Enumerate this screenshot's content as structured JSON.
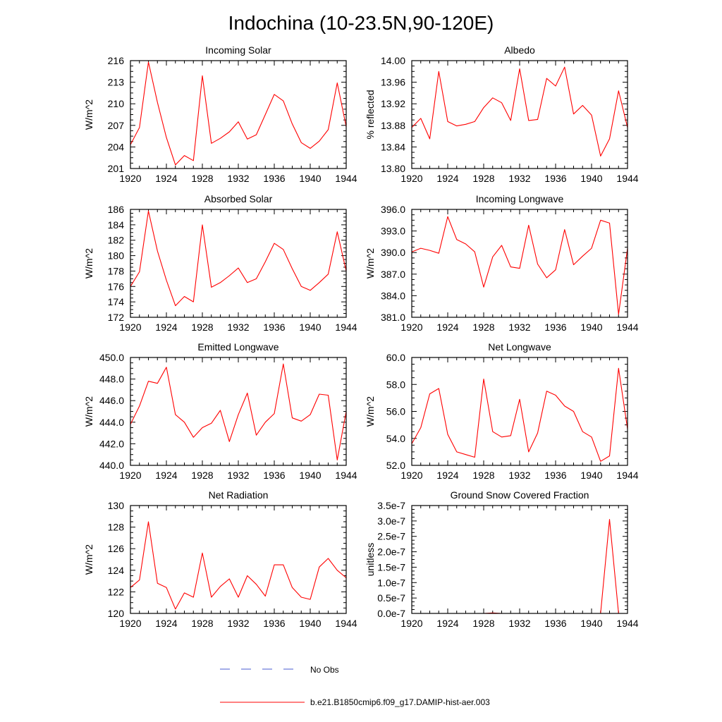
{
  "figure": {
    "title": "Indochina (10-23.5N,90-120E)",
    "legend": [
      {
        "label": "No Obs",
        "style": "dashed",
        "color": "#4a5bd0"
      },
      {
        "label": "b.e21.B1850cmip6.f09_g17.DAMIP-hist-aer.003",
        "style": "solid",
        "color": "#ff0000"
      }
    ]
  },
  "chart_data": [
    {
      "type": "line",
      "title": "Incoming Solar",
      "ylabel": "W/m^2",
      "xlim": [
        1920,
        1944
      ],
      "ylim": [
        201,
        216
      ],
      "yticks": [
        "201",
        "204",
        "207",
        "210",
        "213",
        "216"
      ],
      "xticks": [
        "1920",
        "1924",
        "1928",
        "1932",
        "1936",
        "1940",
        "1944"
      ],
      "series": [
        {
          "color": "#ff0000",
          "x": [
            1920,
            1921,
            1922,
            1923,
            1924,
            1925,
            1926,
            1927,
            1928,
            1929,
            1930,
            1931,
            1932,
            1933,
            1934,
            1935,
            1936,
            1937,
            1938,
            1939,
            1940,
            1941,
            1942,
            1943,
            1944
          ],
          "values": [
            204.3,
            206.7,
            215.8,
            210.2,
            205.3,
            201.5,
            202.8,
            202.1,
            213.9,
            204.5,
            205.2,
            206.1,
            207.5,
            205.1,
            205.7,
            208.5,
            211.3,
            210.4,
            207.2,
            204.6,
            203.8,
            204.8,
            206.4,
            212.9,
            206.8
          ]
        }
      ]
    },
    {
      "type": "line",
      "title": "Albedo",
      "ylabel": "% reflected",
      "xlim": [
        1920,
        1944
      ],
      "ylim": [
        13.8,
        14.0
      ],
      "yticks": [
        "13.80",
        "13.84",
        "13.88",
        "13.92",
        "13.96",
        "14.00"
      ],
      "xticks": [
        "1920",
        "1924",
        "1928",
        "1932",
        "1936",
        "1940",
        "1944"
      ],
      "series": [
        {
          "color": "#ff0000",
          "x": [
            1920,
            1921,
            1922,
            1923,
            1924,
            1925,
            1926,
            1927,
            1928,
            1929,
            1930,
            1931,
            1932,
            1933,
            1934,
            1935,
            1936,
            1937,
            1938,
            1939,
            1940,
            1941,
            1942,
            1943,
            1944
          ],
          "values": [
            13.876,
            13.893,
            13.855,
            13.98,
            13.887,
            13.879,
            13.882,
            13.887,
            13.913,
            13.931,
            13.922,
            13.889,
            13.985,
            13.889,
            13.891,
            13.967,
            13.953,
            13.988,
            13.901,
            13.917,
            13.899,
            13.823,
            13.855,
            13.944,
            13.876
          ]
        }
      ]
    },
    {
      "type": "line",
      "title": "Absorbed Solar",
      "ylabel": "W/m^2",
      "xlim": [
        1920,
        1944
      ],
      "ylim": [
        172,
        186
      ],
      "yticks": [
        "172",
        "174",
        "176",
        "178",
        "180",
        "182",
        "184",
        "186"
      ],
      "xticks": [
        "1920",
        "1924",
        "1928",
        "1932",
        "1936",
        "1940",
        "1944"
      ],
      "series": [
        {
          "color": "#ff0000",
          "x": [
            1920,
            1921,
            1922,
            1923,
            1924,
            1925,
            1926,
            1927,
            1928,
            1929,
            1930,
            1931,
            1932,
            1933,
            1934,
            1935,
            1936,
            1937,
            1938,
            1939,
            1940,
            1941,
            1942,
            1943,
            1944
          ],
          "values": [
            176.0,
            177.9,
            185.8,
            180.6,
            176.8,
            173.5,
            174.7,
            174.0,
            184.0,
            175.9,
            176.5,
            177.4,
            178.4,
            176.5,
            177.0,
            179.2,
            181.6,
            180.8,
            178.3,
            176.0,
            175.5,
            176.5,
            177.6,
            183.1,
            178.0
          ]
        }
      ]
    },
    {
      "type": "line",
      "title": "Incoming Longwave",
      "ylabel": "W/m^2",
      "xlim": [
        1920,
        1944
      ],
      "ylim": [
        381.0,
        396.0
      ],
      "yticks": [
        "381.0",
        "384.0",
        "387.0",
        "390.0",
        "393.0",
        "396.0"
      ],
      "xticks": [
        "1920",
        "1924",
        "1928",
        "1932",
        "1936",
        "1940",
        "1944"
      ],
      "series": [
        {
          "color": "#ff0000",
          "x": [
            1920,
            1921,
            1922,
            1923,
            1924,
            1925,
            1926,
            1927,
            1928,
            1929,
            1930,
            1931,
            1932,
            1933,
            1934,
            1935,
            1936,
            1937,
            1938,
            1939,
            1940,
            1941,
            1942,
            1943,
            1944
          ],
          "values": [
            390.1,
            390.6,
            390.3,
            389.9,
            395.0,
            391.8,
            391.2,
            390.1,
            385.2,
            389.4,
            391.0,
            388.0,
            387.8,
            393.8,
            388.4,
            386.5,
            387.6,
            393.2,
            388.3,
            389.5,
            390.6,
            394.5,
            394.1,
            381.4,
            390.6
          ]
        }
      ]
    },
    {
      "type": "line",
      "title": "Emitted Longwave",
      "ylabel": "W/m^2",
      "xlim": [
        1920,
        1944
      ],
      "ylim": [
        440.0,
        450.0
      ],
      "yticks": [
        "440.0",
        "442.0",
        "444.0",
        "446.0",
        "448.0",
        "450.0"
      ],
      "xticks": [
        "1920",
        "1924",
        "1928",
        "1932",
        "1936",
        "1940",
        "1944"
      ],
      "series": [
        {
          "color": "#ff0000",
          "x": [
            1920,
            1921,
            1922,
            1923,
            1924,
            1925,
            1926,
            1927,
            1928,
            1929,
            1930,
            1931,
            1932,
            1933,
            1934,
            1935,
            1936,
            1937,
            1938,
            1939,
            1940,
            1941,
            1942,
            1943,
            1944
          ],
          "values": [
            443.8,
            445.5,
            447.8,
            447.6,
            449.1,
            444.7,
            444.0,
            442.6,
            443.5,
            443.9,
            445.1,
            442.2,
            444.7,
            446.7,
            442.8,
            444.0,
            444.8,
            449.4,
            444.4,
            444.1,
            444.7,
            446.6,
            446.5,
            440.5,
            445.0
          ]
        }
      ]
    },
    {
      "type": "line",
      "title": "Net Longwave",
      "ylabel": "W/m^2",
      "xlim": [
        1920,
        1944
      ],
      "ylim": [
        52.0,
        60.0
      ],
      "yticks": [
        "52.0",
        "54.0",
        "56.0",
        "58.0",
        "60.0"
      ],
      "xticks": [
        "1920",
        "1924",
        "1928",
        "1932",
        "1936",
        "1940",
        "1944"
      ],
      "series": [
        {
          "color": "#ff0000",
          "x": [
            1920,
            1921,
            1922,
            1923,
            1924,
            1925,
            1926,
            1927,
            1928,
            1929,
            1930,
            1931,
            1932,
            1933,
            1934,
            1935,
            1936,
            1937,
            1938,
            1939,
            1940,
            1941,
            1942,
            1943,
            1944
          ],
          "values": [
            53.6,
            54.8,
            57.3,
            57.7,
            54.3,
            53.0,
            52.8,
            52.6,
            58.4,
            54.5,
            54.1,
            54.2,
            56.9,
            53.0,
            54.4,
            57.5,
            57.2,
            56.4,
            56.0,
            54.5,
            54.1,
            52.3,
            52.7,
            59.2,
            54.7
          ]
        }
      ]
    },
    {
      "type": "line",
      "title": "Net Radiation",
      "ylabel": "W/m^2",
      "xlim": [
        1920,
        1944
      ],
      "ylim": [
        120,
        130
      ],
      "yticks": [
        "120",
        "122",
        "124",
        "126",
        "128",
        "130"
      ],
      "xticks": [
        "1920",
        "1924",
        "1928",
        "1932",
        "1936",
        "1940",
        "1944"
      ],
      "series": [
        {
          "color": "#ff0000",
          "x": [
            1920,
            1921,
            1922,
            1923,
            1924,
            1925,
            1926,
            1927,
            1928,
            1929,
            1930,
            1931,
            1932,
            1933,
            1934,
            1935,
            1936,
            1937,
            1938,
            1939,
            1940,
            1941,
            1942,
            1943,
            1944
          ],
          "values": [
            122.4,
            123.1,
            128.5,
            122.8,
            122.4,
            120.4,
            121.9,
            121.5,
            125.6,
            121.5,
            122.5,
            123.2,
            121.5,
            123.5,
            122.7,
            121.6,
            124.5,
            124.5,
            122.4,
            121.5,
            121.3,
            124.3,
            125.1,
            124.0,
            123.3
          ]
        }
      ]
    },
    {
      "type": "line",
      "title": "Ground Snow Covered Fraction",
      "ylabel": "unitless",
      "xlim": [
        1920,
        1944
      ],
      "ylim": [
        0,
        3.5e-07
      ],
      "yticks": [
        "0.0e-7",
        "0.5e-7",
        "1.0e-7",
        "1.5e-7",
        "2.0e-7",
        "2.5e-7",
        "3.0e-7",
        "3.5e-7"
      ],
      "xticks": [
        "1920",
        "1924",
        "1928",
        "1932",
        "1936",
        "1940",
        "1944"
      ],
      "series": [
        {
          "color": "#ff0000",
          "x": [
            1920,
            1921,
            1922,
            1923,
            1924,
            1925,
            1926,
            1927,
            1928,
            1929,
            1930,
            1931,
            1932,
            1933,
            1934,
            1935,
            1936,
            1937,
            1938,
            1939,
            1940,
            1941,
            1942,
            1943,
            1944
          ],
          "values": [
            0,
            0,
            0,
            0,
            0,
            0,
            0,
            0,
            0,
            1.5e-09,
            0,
            0,
            0,
            0,
            0,
            0,
            0,
            0,
            0,
            0,
            0,
            0,
            3.05e-07,
            0,
            0
          ]
        }
      ]
    }
  ]
}
